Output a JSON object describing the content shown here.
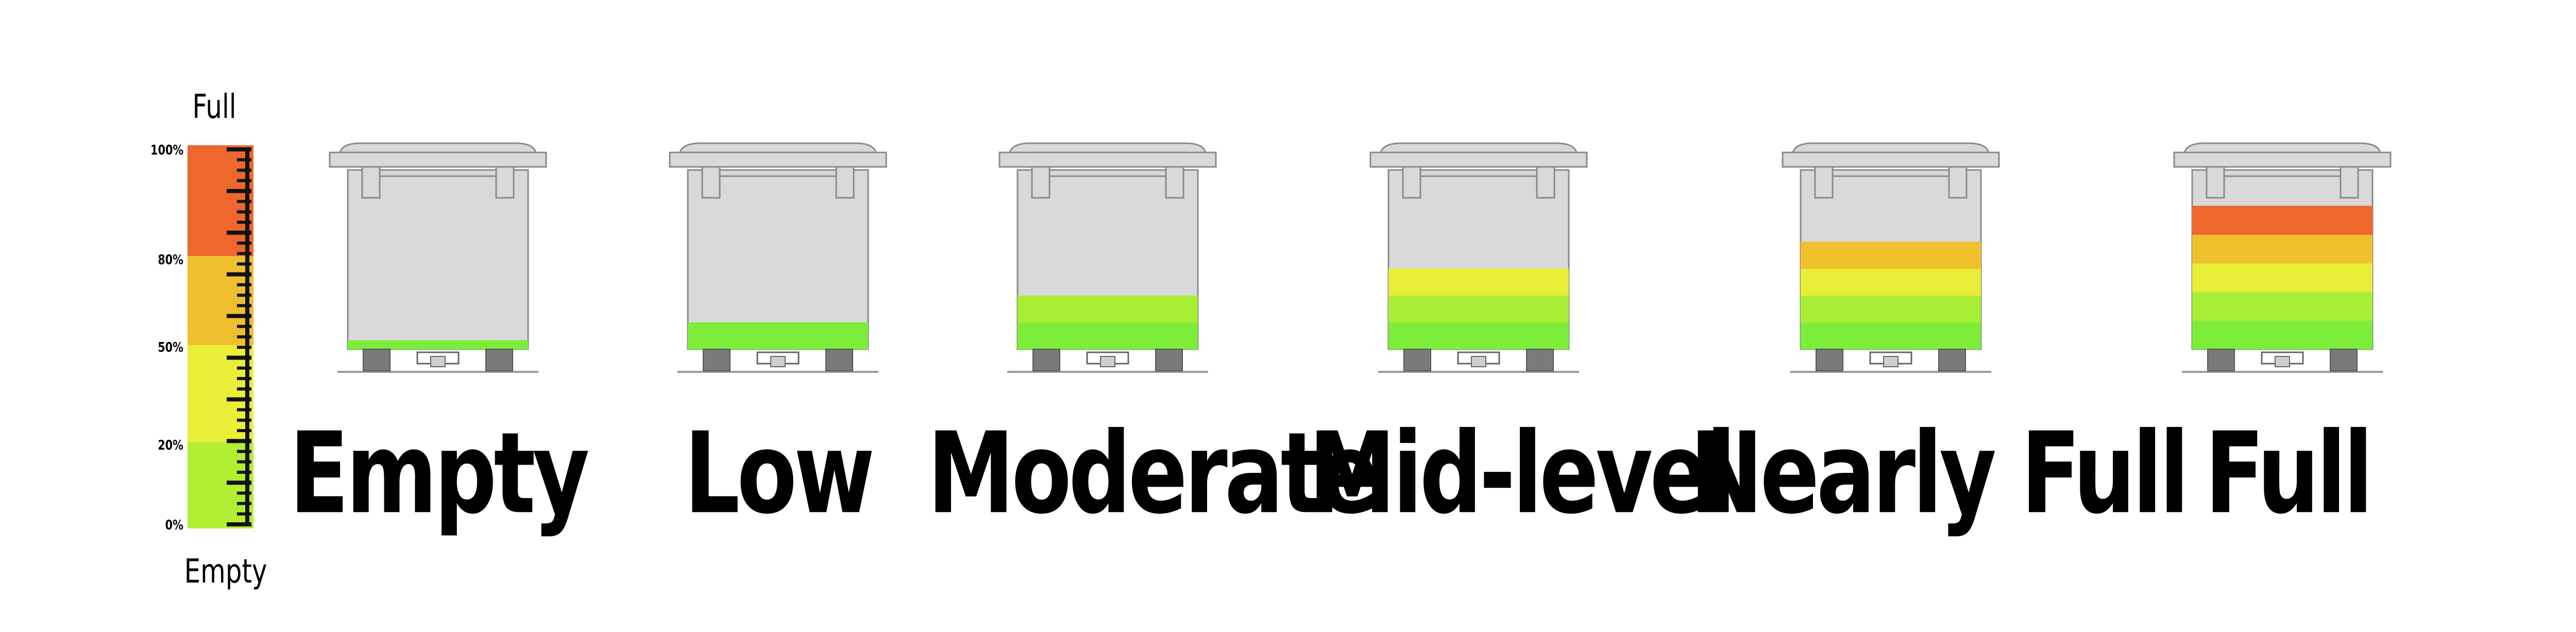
{
  "scale": {
    "top_label": "Full",
    "bottom_label": "Empty",
    "ticks": [
      {
        "label": "100%",
        "value": 1.0
      },
      {
        "label": "80%",
        "value": 0.8
      },
      {
        "label": "50%",
        "value": 0.5
      },
      {
        "label": "20%",
        "value": 0.2
      },
      {
        "label": "0%",
        "value": 0.0
      }
    ],
    "bands": [
      {
        "color": "#ee672d"
      },
      {
        "color": "#efbf2e"
      },
      {
        "color": "#ebee36"
      },
      {
        "color": "#b2ee31"
      }
    ]
  },
  "colors": {
    "level_1": "#7ced38",
    "level_2": "#a8ee34",
    "level_3": "#e8ee36",
    "level_4": "#efc12d",
    "level_5": "#ee672d",
    "bin_body": "#d9d9d9",
    "bin_outline": "#8a8a8a",
    "wheel": "#7a7a7a"
  },
  "bins": [
    {
      "label": "Empty",
      "fill_level": 0.05,
      "levels": 1
    },
    {
      "label": "Low",
      "fill_level": 0.15,
      "levels": 1
    },
    {
      "label": "Moderate",
      "fill_level": 0.3,
      "levels": 2
    },
    {
      "label": "Mid-level",
      "fill_level": 0.45,
      "levels": 3
    },
    {
      "label": "Nearly Full",
      "fill_level": 0.6,
      "levels": 4
    },
    {
      "label": "Full",
      "fill_level": 0.8,
      "levels": 5
    }
  ]
}
